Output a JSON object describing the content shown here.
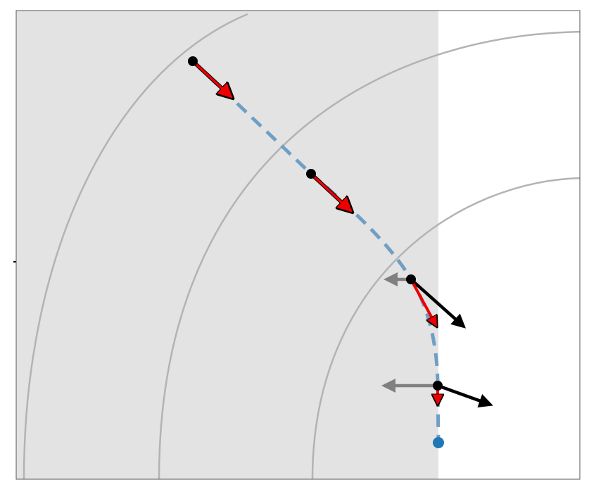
{
  "colors": {
    "background": "#ffffff",
    "shaded_region": "#e3e3e3",
    "frame": "#555555",
    "contour": "#b3b3b3",
    "path": "#6f9fc4",
    "red_arrow": "#ee0000",
    "black_arrow": "#000000",
    "gray_arrow": "#808080",
    "point": "#000000",
    "end_point": "#1f77b4"
  },
  "elements": {
    "contours": 3,
    "trajectory_points": 4,
    "red_arrows": 4,
    "black_arrows": 2,
    "gray_arrows": 2,
    "end_points": 1
  }
}
